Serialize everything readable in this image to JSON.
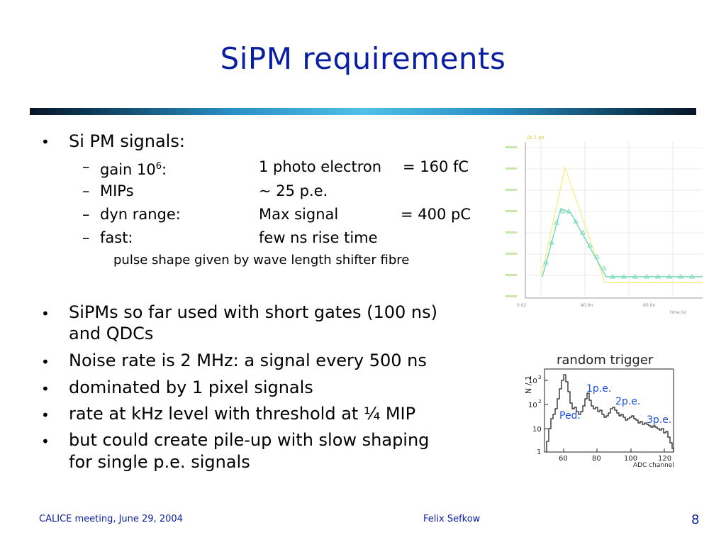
{
  "slide": {
    "title": "SiPM requirements",
    "bullets": [
      {
        "text": "Si PM signals:"
      },
      {
        "text": "SiPMs so far used with short gates (100 ns)",
        "text2": "and QDCs"
      },
      {
        "text": "Noise rate is 2 MHz: a signal every 500 ns"
      },
      {
        "text": "dominated by 1 pixel signals"
      },
      {
        "text": "rate at kHz level with threshold at ¼ MIP"
      },
      {
        "text": "but could create pile-up with slow shaping",
        "text2": "for single p.e. signals"
      }
    ],
    "sub": [
      {
        "label": "gain 10",
        "sup": "6",
        "colon": ":",
        "value": "1 photo electron",
        "value2": "= 160 fC"
      },
      {
        "label": "MIPs",
        "value": "~ 25 p.e."
      },
      {
        "label": "dyn range:",
        "value": "Max signal",
        "value2": "= 400 pC"
      },
      {
        "label": "fast:",
        "value": "few ns rise time"
      }
    ],
    "note": "pulse shape given by wave length shifter fibre",
    "dash": "–",
    "bullet_char": "•"
  },
  "scope_plot": {
    "legend": "Δt 1 ps",
    "x_ticks": [
      "0.02",
      "40.0n",
      "80.0n"
    ],
    "x_unit": "time (s)",
    "colors": {
      "pulse_a": "#f5f08a",
      "pulse_b": "#6fd8b8",
      "axis": "#9a9a9a",
      "grid": "#d8d8d8"
    }
  },
  "histogram": {
    "title": "random trigger",
    "ylabel": "N / 1",
    "y_ticks": [
      "10",
      "10",
      "10",
      "1"
    ],
    "y_sups": [
      "3",
      "2"
    ],
    "x_ticks": [
      "60",
      "80",
      "100",
      "120"
    ],
    "xlabel": "ADC channel",
    "labels": {
      "ped": "Ped.",
      "pe1": "1p.e.",
      "pe2": "2p.e.",
      "pe3": "3p.e."
    },
    "colors": {
      "label": "#1a4fd8"
    }
  },
  "footer": {
    "left": "CALICE meeting, June 29, 2004",
    "center": "Felix Sefkow",
    "page": "8"
  }
}
